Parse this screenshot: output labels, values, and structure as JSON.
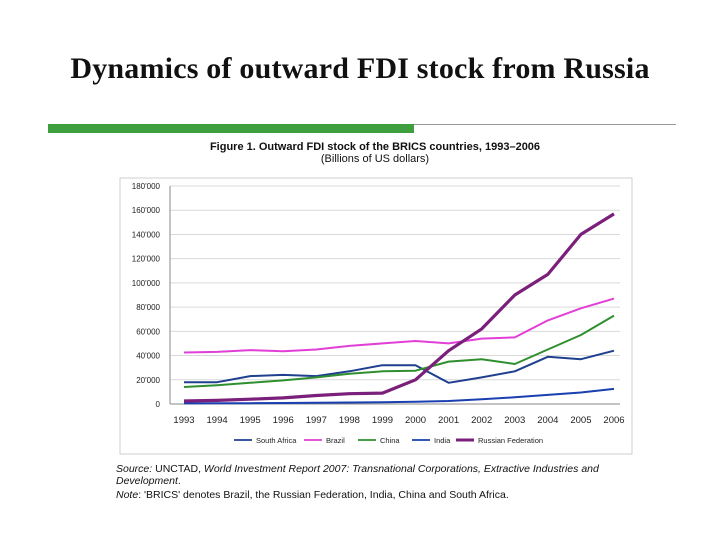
{
  "slide": {
    "title": "Dynamics of outward FDI stock from Russia"
  },
  "colors": {
    "accent_bar": "#3f9f3f",
    "grid": "#d9d9d9",
    "plot_border": "#cfcfcf"
  },
  "figure": {
    "title": "Figure 1. Outward FDI stock of the BRICS countries, 1993–2006",
    "subtitle": "(Billions of US dollars)"
  },
  "footer": {
    "source_label": "Source:",
    "source_text": "UNCTAD,",
    "source_italic": "World Investment Report 2007: Transnational Corporations, Extractive Industries and Development",
    "source_end": ".",
    "note_label": "Note",
    "note_text": ": 'BRICS' denotes Brazil, the Russian Federation, India, China and South Africa."
  },
  "chart_data": {
    "type": "line",
    "title": "Figure 1. Outward FDI stock of the BRICS countries, 1993–2006",
    "subtitle": "(Billions of US dollars)",
    "x": [
      "1993",
      "1994",
      "1995",
      "1996",
      "1997",
      "1998",
      "1999",
      "2000",
      "2001",
      "2002",
      "2003",
      "2004",
      "2005",
      "2006"
    ],
    "y_ticks": [
      "0",
      "20'000",
      "40'000",
      "60'000",
      "80'000",
      "100'000",
      "120'000",
      "140'000",
      "160'000",
      "180'000"
    ],
    "ylim": [
      0,
      180000
    ],
    "grid": true,
    "legend_position": "bottom",
    "series": [
      {
        "name": "South Africa",
        "color": "#1f3f8f",
        "values": [
          18000,
          18000,
          23000,
          24000,
          23000,
          27000,
          32000,
          32000,
          17500,
          22000,
          27000,
          39000,
          37000,
          44000
        ]
      },
      {
        "name": "Brazil",
        "color": "#e23fd6",
        "values": [
          42500,
          43000,
          44500,
          43500,
          45000,
          48000,
          50000,
          52000,
          50000,
          54000,
          55000,
          69000,
          79000,
          87000
        ]
      },
      {
        "name": "China",
        "color": "#2f8f2f",
        "values": [
          14000,
          15500,
          17500,
          19500,
          22000,
          25000,
          27000,
          27500,
          35000,
          37000,
          33000,
          45000,
          57000,
          73000
        ]
      },
      {
        "name": "India",
        "color": "#1a3fb0",
        "values": [
          500,
          600,
          700,
          800,
          1000,
          1200,
          1500,
          1800,
          2500,
          4000,
          5500,
          7500,
          9500,
          12500
        ]
      },
      {
        "name": "Russian Federation",
        "color": "#7a1f7a",
        "values": [
          2500,
          3000,
          4000,
          5000,
          7000,
          8500,
          9000,
          20000,
          44000,
          62000,
          90000,
          107000,
          140000,
          157000
        ]
      }
    ]
  }
}
